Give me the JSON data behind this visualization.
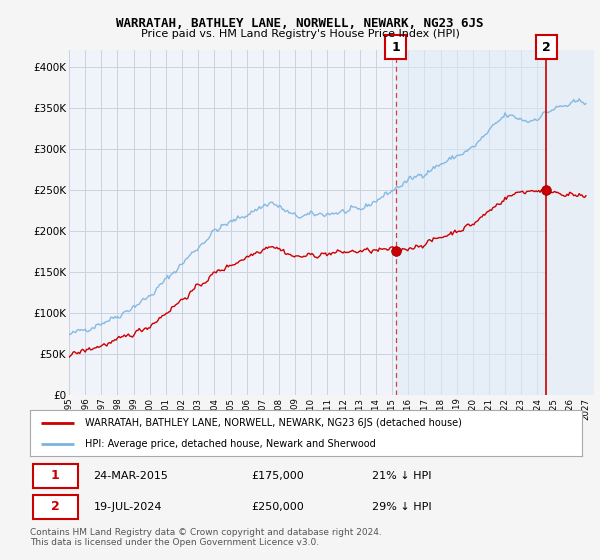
{
  "title": "WARRATAH, BATHLEY LANE, NORWELL, NEWARK, NG23 6JS",
  "subtitle": "Price paid vs. HM Land Registry's House Price Index (HPI)",
  "yticks": [
    0,
    50000,
    100000,
    150000,
    200000,
    250000,
    300000,
    350000,
    400000
  ],
  "ytick_labels": [
    "£0",
    "£50K",
    "£100K",
    "£150K",
    "£200K",
    "£250K",
    "£300K",
    "£350K",
    "£400K"
  ],
  "xlim_start": 1995.0,
  "xlim_end": 2027.5,
  "ylim_max": 420000,
  "hpi_color": "#7ab4e0",
  "price_color": "#cc0000",
  "bg_color": "#ffffff",
  "plot_bg_left": "#f0f4fa",
  "plot_bg_shade": "#ddeaf8",
  "grid_color": "#c8d4e0",
  "marker1_x": 2015.22,
  "marker1_y": 175000,
  "marker2_x": 2024.55,
  "marker2_y": 250000,
  "marker1_date": "24-MAR-2015",
  "marker1_price": "£175,000",
  "marker1_pct": "21% ↓ HPI",
  "marker2_date": "19-JUL-2024",
  "marker2_price": "£250,000",
  "marker2_pct": "29% ↓ HPI",
  "legend_label1": "WARRATAH, BATHLEY LANE, NORWELL, NEWARK, NG23 6JS (detached house)",
  "legend_label2": "HPI: Average price, detached house, Newark and Sherwood",
  "footer": "Contains HM Land Registry data © Crown copyright and database right 2024.\nThis data is licensed under the Open Government Licence v3.0."
}
